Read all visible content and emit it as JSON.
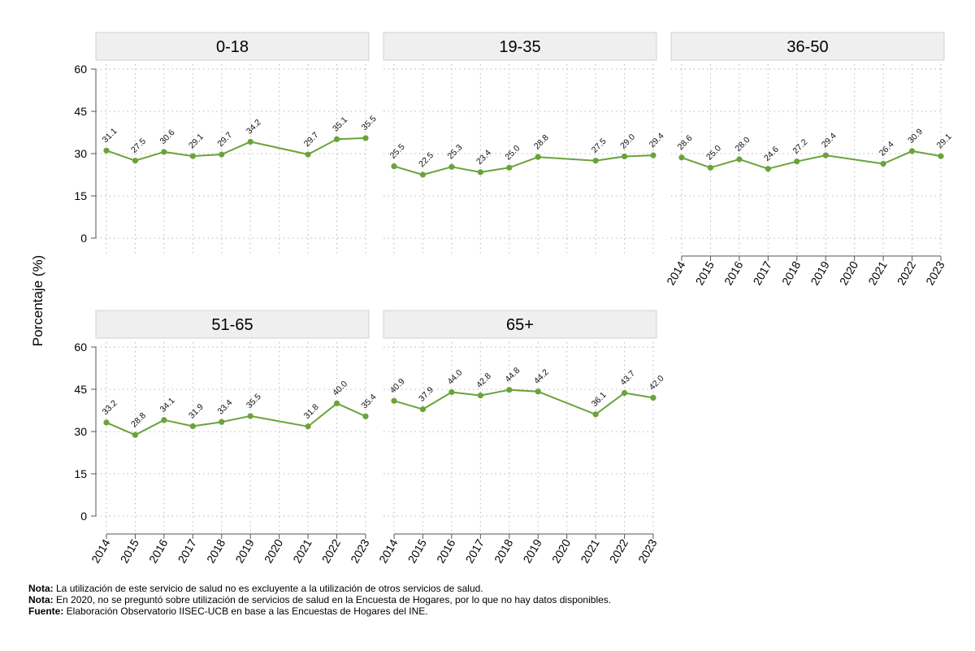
{
  "chart_data": {
    "type": "line",
    "ylabel": "Porcentaje (%)",
    "ylim": [
      0,
      60
    ],
    "yticks": [
      0,
      15,
      30,
      45,
      60
    ],
    "x": [
      "2014",
      "2015",
      "2016",
      "2017",
      "2018",
      "2019",
      "2020",
      "2021",
      "2022",
      "2023"
    ],
    "line_color": "#6aa33a",
    "panels": [
      {
        "title": "0-18",
        "values": [
          31.1,
          27.5,
          30.6,
          29.1,
          29.7,
          34.2,
          null,
          29.7,
          35.1,
          35.5
        ],
        "labels": [
          "31.1",
          "27.5",
          "30.6",
          "29.1",
          "29.7",
          "34.2",
          null,
          "29.7",
          "35.1",
          "35.5"
        ]
      },
      {
        "title": "19-35",
        "values": [
          25.5,
          22.5,
          25.3,
          23.4,
          25.0,
          28.8,
          null,
          27.5,
          29.0,
          29.4
        ],
        "labels": [
          "25.5",
          "22.5",
          "25.3",
          "23.4",
          "25.0",
          "28.8",
          null,
          "27.5",
          "29.0",
          "29.4"
        ]
      },
      {
        "title": "36-50",
        "values": [
          28.6,
          25.0,
          28.0,
          24.6,
          27.2,
          29.4,
          null,
          26.4,
          30.9,
          29.1
        ],
        "labels": [
          "28.6",
          "25.0",
          "28.0",
          "24.6",
          "27.2",
          "29.4",
          null,
          "26.4",
          "30.9",
          "29.1"
        ]
      },
      {
        "title": "51-65",
        "values": [
          33.2,
          28.8,
          34.1,
          31.9,
          33.4,
          35.5,
          null,
          31.8,
          40.0,
          35.4
        ],
        "labels": [
          "33.2",
          "28.8",
          "34.1",
          "31.9",
          "33.4",
          "35.5",
          null,
          "31.8",
          "40.0",
          "35.4"
        ]
      },
      {
        "title": "65+",
        "values": [
          40.9,
          37.9,
          44.0,
          42.8,
          44.8,
          44.2,
          null,
          36.1,
          43.7,
          42.0
        ],
        "labels": [
          "40.9",
          "37.9",
          "44.0",
          "42.8",
          "44.8",
          "44.2",
          null,
          "36.1",
          "43.7",
          "42.0"
        ]
      }
    ]
  },
  "notes": [
    {
      "label": "Nota:",
      "text": " La utilización de este servicio de salud no es excluyente a la utilización de otros servicios de salud."
    },
    {
      "label": "Nota:",
      "text": " En 2020, no se preguntó sobre utilización de servicios de salud en la Encuesta de Hogares, por lo que no hay datos disponibles."
    },
    {
      "label": "Fuente:",
      "text": " Elaboración Observatorio IISEC-UCB en base a las Encuestas de Hogares del INE."
    }
  ]
}
